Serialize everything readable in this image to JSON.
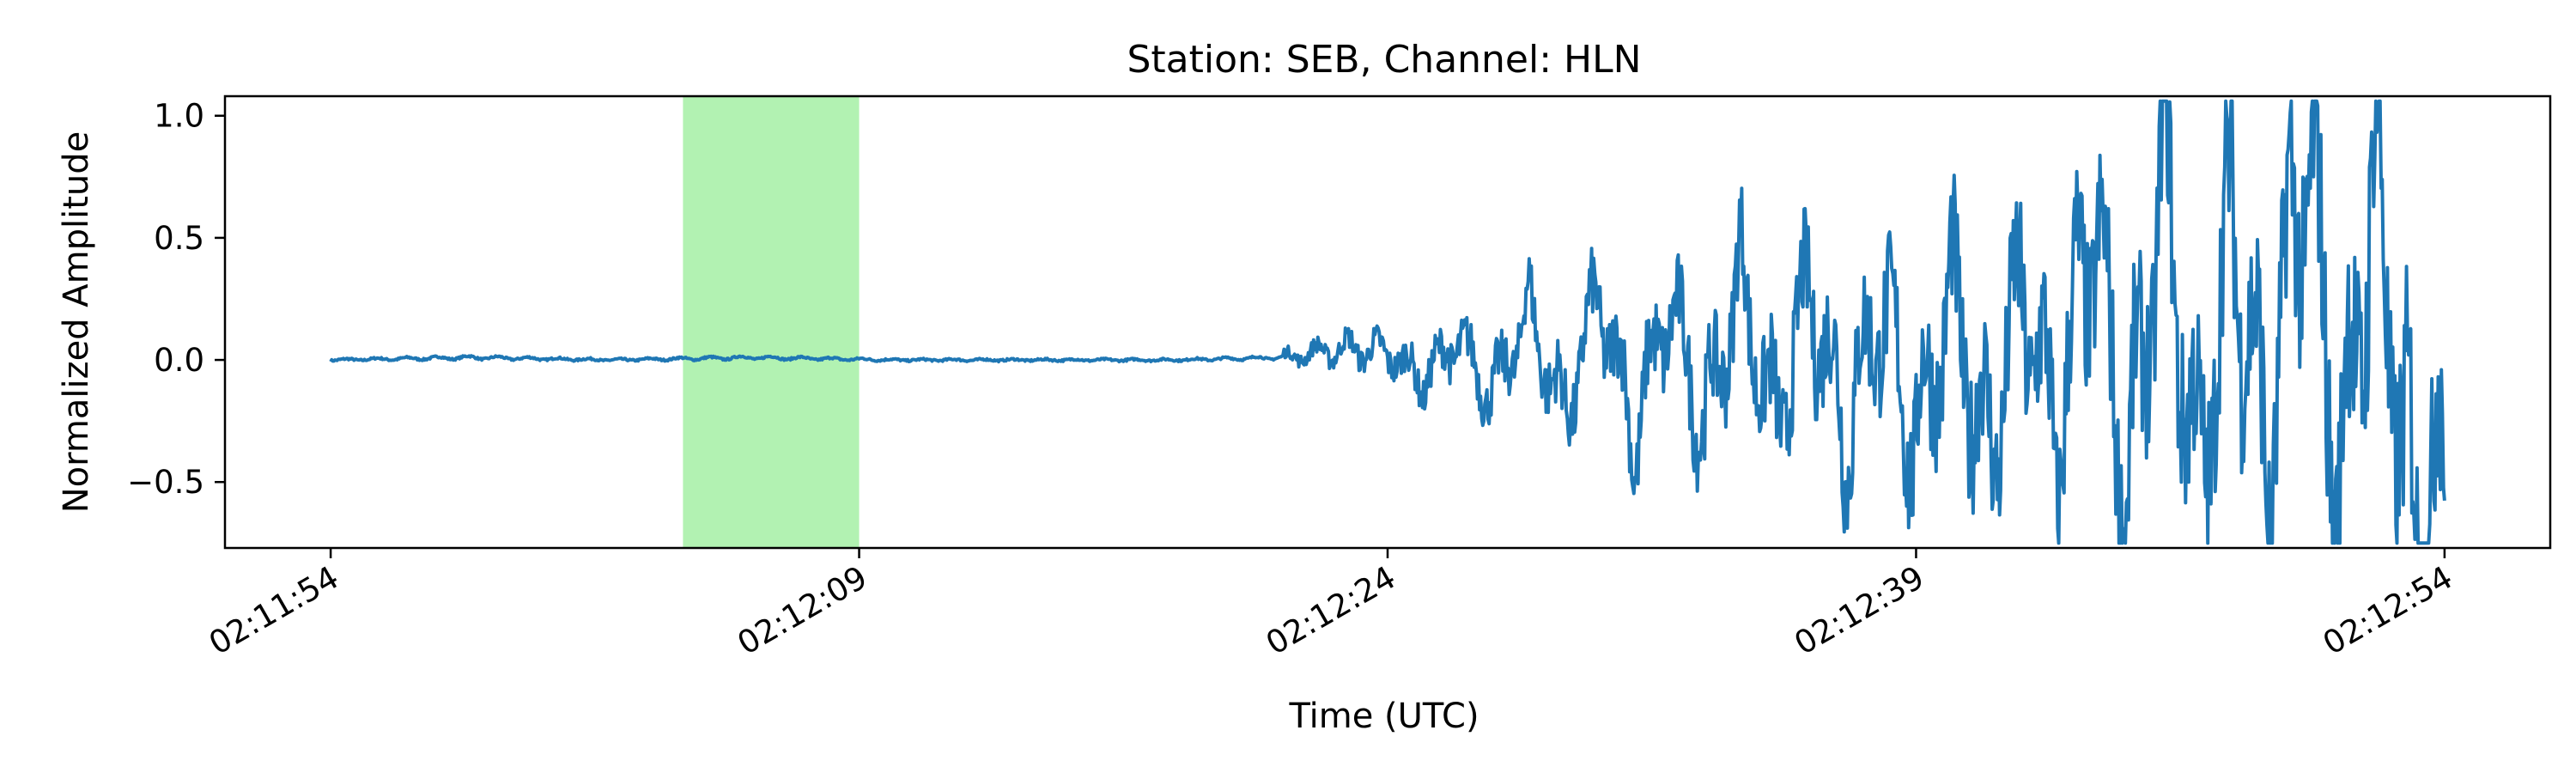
{
  "chart_data": {
    "type": "line",
    "title": "Station: SEB, Channel: HLN",
    "xlabel": "Time (UTC)",
    "ylabel": "Normalized Amplitude",
    "x_ticks": [
      "02:11:54",
      "02:12:09",
      "02:12:24",
      "02:12:39",
      "02:12:54"
    ],
    "y_ticks": [
      "−0.5",
      "0.0",
      "0.5",
      "1.0"
    ],
    "xlim": [
      "02:11:51",
      "02:12:57"
    ],
    "ylim": [
      -0.77,
      1.08
    ],
    "grid": false,
    "highlight_window": {
      "start": "02:12:04",
      "end": "02:12:09",
      "color": "#b2f2b2"
    },
    "series": [
      {
        "color": "#1f77b4",
        "start": "02:11:54",
        "end": "02:12:54",
        "points": [
          [
            "02:11:54",
            0.0
          ],
          [
            "02:11:58",
            0.01
          ],
          [
            "02:12:02",
            0.0
          ],
          [
            "02:12:06",
            0.01
          ],
          [
            "02:12:10",
            0.0
          ],
          [
            "02:12:14",
            0.0
          ],
          [
            "02:12:18",
            0.0
          ],
          [
            "02:12:21",
            0.01
          ],
          [
            "02:12:22",
            0.03
          ],
          [
            "02:12:23",
            0.05
          ],
          [
            "02:12:24",
            0.03
          ],
          [
            "02:12:25",
            -0.08
          ],
          [
            "02:12:26",
            0.09
          ],
          [
            "02:12:27",
            -0.15
          ],
          [
            "02:12:28",
            0.2
          ],
          [
            "02:12:29",
            -0.25
          ],
          [
            "02:12:30",
            0.28
          ],
          [
            "02:12:31",
            -0.3
          ],
          [
            "02:12:32",
            0.25
          ],
          [
            "02:12:33",
            -0.28
          ],
          [
            "02:12:34",
            0.32
          ],
          [
            "02:12:35",
            -0.3
          ],
          [
            "02:12:36",
            0.3
          ],
          [
            "02:12:37",
            -0.29
          ],
          [
            "02:12:38",
            0.26
          ],
          [
            "02:12:39",
            -0.35
          ],
          [
            "02:12:40",
            0.26
          ],
          [
            "02:12:41",
            -0.43
          ],
          [
            "02:12:42",
            0.29
          ],
          [
            "02:12:43",
            -0.33
          ],
          [
            "02:12:44",
            0.64
          ],
          [
            "02:12:45",
            -0.54
          ],
          [
            "02:12:46",
            0.76
          ],
          [
            "02:12:47",
            -0.57
          ],
          [
            "02:12:48",
            0.59
          ],
          [
            "02:12:49",
            -0.44
          ],
          [
            "02:12:50",
            1.0
          ],
          [
            "02:12:51",
            -0.5
          ],
          [
            "02:12:52",
            0.7
          ],
          [
            "02:12:53",
            -0.67
          ],
          [
            "02:12:54",
            -0.58
          ]
        ]
      }
    ]
  }
}
